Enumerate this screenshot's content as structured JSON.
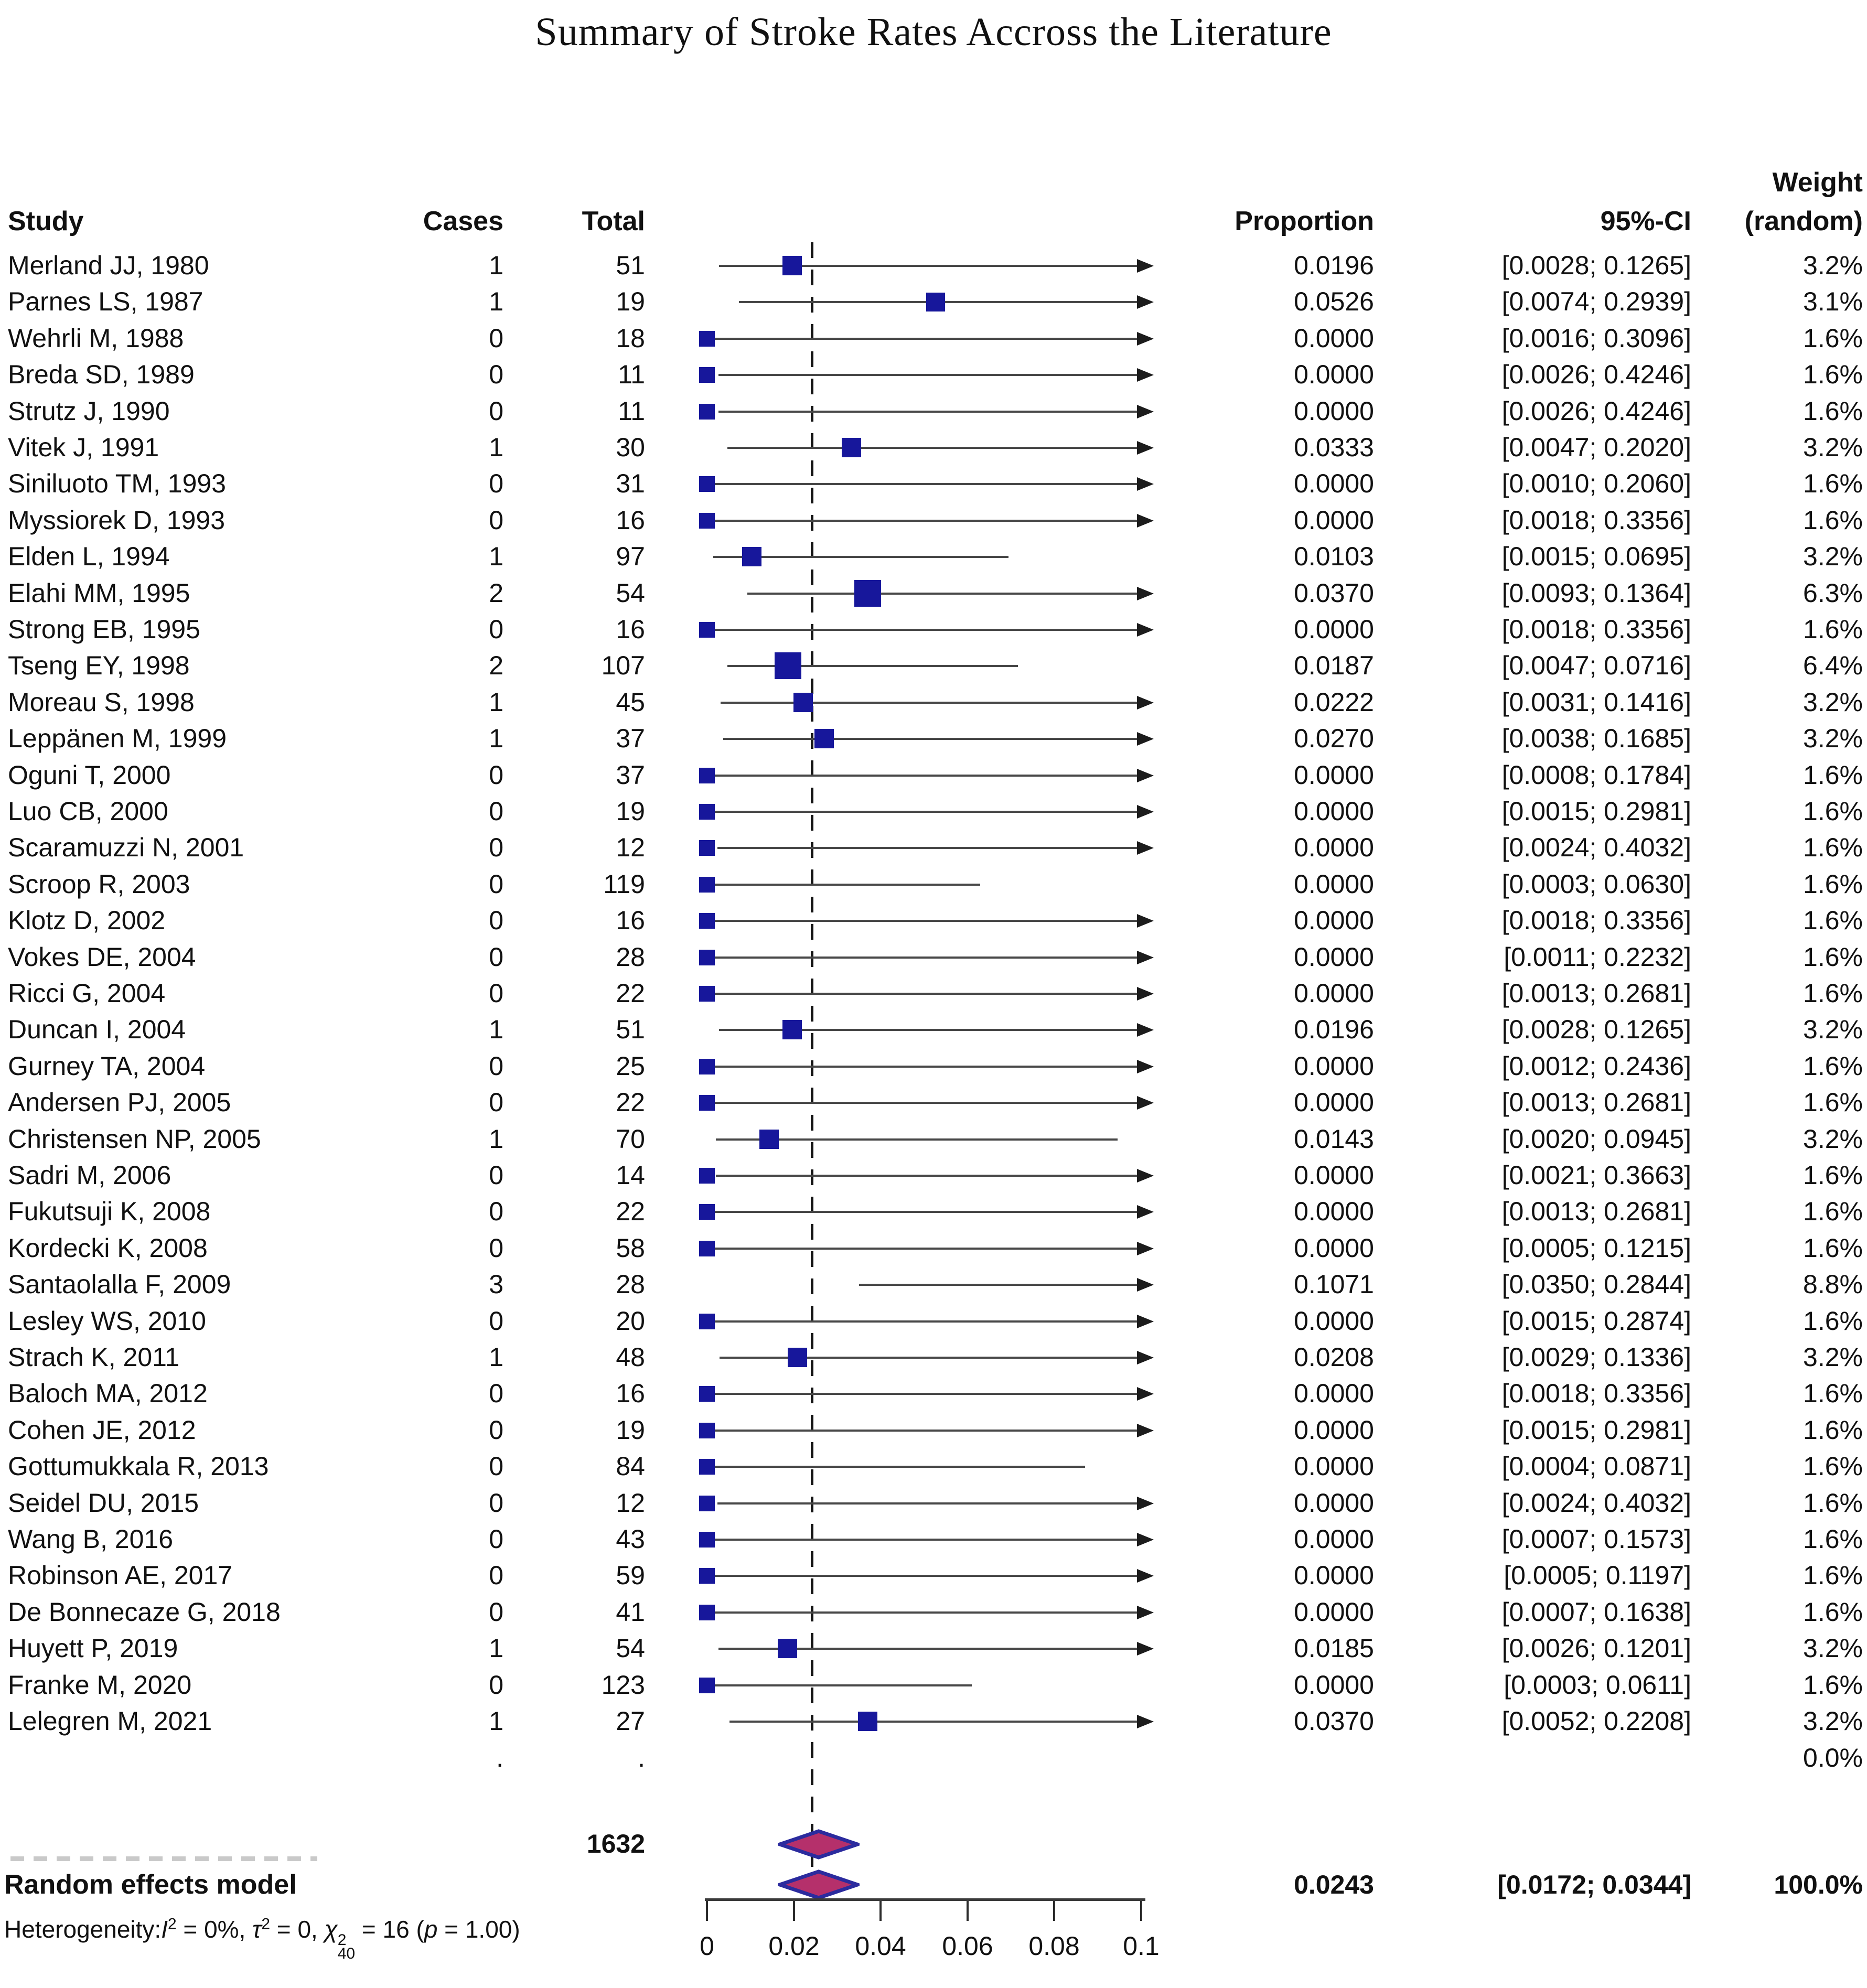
{
  "title": "Summary of Stroke Rates Accross the Literature",
  "columns": {
    "study": "Study",
    "cases": "Cases",
    "total": "Total",
    "proportion": "Proportion",
    "ci": "95%-CI",
    "weight_line1": "Weight",
    "weight_line2": "(random)"
  },
  "colors": {
    "square": "#17179b",
    "diamond_fill": "#b5306b",
    "diamond_border": "#2b2b9e",
    "ci_line": "#474747",
    "arrow": "#1c1c1c",
    "text": "#111111"
  },
  "axis": {
    "min": 0,
    "max": 0.1,
    "ticks": [
      0,
      0.02,
      0.04,
      0.06,
      0.08,
      0.1
    ],
    "tick_labels": [
      "0",
      "0.02",
      "0.04",
      "0.06",
      "0.08",
      "0.1"
    ]
  },
  "dots_row": {
    "cases": ".",
    "total": ".",
    "weight": "0.0%"
  },
  "summary": {
    "total": "1632",
    "label": "Random effects model",
    "proportion_text": "0.0243",
    "ci_text": "[0.0172; 0.0344]",
    "weight_text": "100.0%",
    "estimate": 0.0243,
    "ci_low": 0.0172,
    "ci_high": 0.0344
  },
  "heterogeneity_parts": [
    {
      "t": "Heterogeneity:"
    },
    {
      "t": "I",
      "i": true
    },
    {
      "sup": "2"
    },
    {
      "t": " = 0%, "
    },
    {
      "t": "τ",
      "i": true
    },
    {
      "sup": "2"
    },
    {
      "t": " = 0, "
    },
    {
      "t": "χ",
      "i": true
    },
    {
      "stack": [
        "2",
        "40"
      ]
    },
    {
      "t": " = 16 ("
    },
    {
      "t": "p",
      "i": true
    },
    {
      "t": " = 1.00)"
    }
  ],
  "chart_data": {
    "type": "scatter",
    "chart_style": "forest-plot (meta-analysis of proportions)",
    "title": "Summary of Stroke Rates Accross the Literature",
    "xlabel": "Proportion",
    "xlim": [
      0,
      0.1
    ],
    "reference_line": 0.0243,
    "legend": "none",
    "studies": [
      {
        "study": "Merland JJ, 1980",
        "cases": "1",
        "total": "51",
        "proportion": 0.0196,
        "ci_low": 0.0028,
        "ci_high": 0.1265,
        "proportion_text": "0.0196",
        "ci_text": "[0.0028; 0.1265]",
        "weight_text": "3.2%",
        "weight": 3.2
      },
      {
        "study": "Parnes LS, 1987",
        "cases": "1",
        "total": "19",
        "proportion": 0.0526,
        "ci_low": 0.0074,
        "ci_high": 0.2939,
        "proportion_text": "0.0526",
        "ci_text": "[0.0074; 0.2939]",
        "weight_text": "3.1%",
        "weight": 3.1
      },
      {
        "study": "Wehrli M, 1988",
        "cases": "0",
        "total": "18",
        "proportion": 0.0,
        "ci_low": 0.0016,
        "ci_high": 0.3096,
        "proportion_text": "0.0000",
        "ci_text": "[0.0016; 0.3096]",
        "weight_text": "1.6%",
        "weight": 1.6
      },
      {
        "study": "Breda SD, 1989",
        "cases": "0",
        "total": "11",
        "proportion": 0.0,
        "ci_low": 0.0026,
        "ci_high": 0.4246,
        "proportion_text": "0.0000",
        "ci_text": "[0.0026; 0.4246]",
        "weight_text": "1.6%",
        "weight": 1.6
      },
      {
        "study": "Strutz J, 1990",
        "cases": "0",
        "total": "11",
        "proportion": 0.0,
        "ci_low": 0.0026,
        "ci_high": 0.4246,
        "proportion_text": "0.0000",
        "ci_text": "[0.0026; 0.4246]",
        "weight_text": "1.6%",
        "weight": 1.6
      },
      {
        "study": "Vitek J, 1991",
        "cases": "1",
        "total": "30",
        "proportion": 0.0333,
        "ci_low": 0.0047,
        "ci_high": 0.202,
        "proportion_text": "0.0333",
        "ci_text": "[0.0047; 0.2020]",
        "weight_text": "3.2%",
        "weight": 3.2
      },
      {
        "study": "Siniluoto TM, 1993",
        "cases": "0",
        "total": "31",
        "proportion": 0.0,
        "ci_low": 0.001,
        "ci_high": 0.206,
        "proportion_text": "0.0000",
        "ci_text": "[0.0010; 0.2060]",
        "weight_text": "1.6%",
        "weight": 1.6
      },
      {
        "study": "Myssiorek D, 1993",
        "cases": "0",
        "total": "16",
        "proportion": 0.0,
        "ci_low": 0.0018,
        "ci_high": 0.3356,
        "proportion_text": "0.0000",
        "ci_text": "[0.0018; 0.3356]",
        "weight_text": "1.6%",
        "weight": 1.6
      },
      {
        "study": "Elden L, 1994",
        "cases": "1",
        "total": "97",
        "proportion": 0.0103,
        "ci_low": 0.0015,
        "ci_high": 0.0695,
        "proportion_text": "0.0103",
        "ci_text": "[0.0015; 0.0695]",
        "weight_text": "3.2%",
        "weight": 3.2
      },
      {
        "study": "Elahi MM, 1995",
        "cases": "2",
        "total": "54",
        "proportion": 0.037,
        "ci_low": 0.0093,
        "ci_high": 0.1364,
        "proportion_text": "0.0370",
        "ci_text": "[0.0093; 0.1364]",
        "weight_text": "6.3%",
        "weight": 6.3
      },
      {
        "study": "Strong EB, 1995",
        "cases": "0",
        "total": "16",
        "proportion": 0.0,
        "ci_low": 0.0018,
        "ci_high": 0.3356,
        "proportion_text": "0.0000",
        "ci_text": "[0.0018; 0.3356]",
        "weight_text": "1.6%",
        "weight": 1.6
      },
      {
        "study": "Tseng EY, 1998",
        "cases": "2",
        "total": "107",
        "proportion": 0.0187,
        "ci_low": 0.0047,
        "ci_high": 0.0716,
        "proportion_text": "0.0187",
        "ci_text": "[0.0047; 0.0716]",
        "weight_text": "6.4%",
        "weight": 6.4
      },
      {
        "study": "Moreau S, 1998",
        "cases": "1",
        "total": "45",
        "proportion": 0.0222,
        "ci_low": 0.0031,
        "ci_high": 0.1416,
        "proportion_text": "0.0222",
        "ci_text": "[0.0031; 0.1416]",
        "weight_text": "3.2%",
        "weight": 3.2
      },
      {
        "study": "Leppänen M, 1999",
        "cases": "1",
        "total": "37",
        "proportion": 0.027,
        "ci_low": 0.0038,
        "ci_high": 0.1685,
        "proportion_text": "0.0270",
        "ci_text": "[0.0038; 0.1685]",
        "weight_text": "3.2%",
        "weight": 3.2
      },
      {
        "study": "Oguni T, 2000",
        "cases": "0",
        "total": "37",
        "proportion": 0.0,
        "ci_low": 0.0008,
        "ci_high": 0.1784,
        "proportion_text": "0.0000",
        "ci_text": "[0.0008; 0.1784]",
        "weight_text": "1.6%",
        "weight": 1.6
      },
      {
        "study": "Luo CB, 2000",
        "cases": "0",
        "total": "19",
        "proportion": 0.0,
        "ci_low": 0.0015,
        "ci_high": 0.2981,
        "proportion_text": "0.0000",
        "ci_text": "[0.0015; 0.2981]",
        "weight_text": "1.6%",
        "weight": 1.6
      },
      {
        "study": "Scaramuzzi N, 2001",
        "cases": "0",
        "total": "12",
        "proportion": 0.0,
        "ci_low": 0.0024,
        "ci_high": 0.4032,
        "proportion_text": "0.0000",
        "ci_text": "[0.0024; 0.4032]",
        "weight_text": "1.6%",
        "weight": 1.6
      },
      {
        "study": "Scroop R, 2003",
        "cases": "0",
        "total": "119",
        "proportion": 0.0,
        "ci_low": 0.0003,
        "ci_high": 0.063,
        "proportion_text": "0.0000",
        "ci_text": "[0.0003; 0.0630]",
        "weight_text": "1.6%",
        "weight": 1.6
      },
      {
        "study": "Klotz D, 2002",
        "cases": "0",
        "total": "16",
        "proportion": 0.0,
        "ci_low": 0.0018,
        "ci_high": 0.3356,
        "proportion_text": "0.0000",
        "ci_text": "[0.0018; 0.3356]",
        "weight_text": "1.6%",
        "weight": 1.6
      },
      {
        "study": "Vokes DE, 2004",
        "cases": "0",
        "total": "28",
        "proportion": 0.0,
        "ci_low": 0.0011,
        "ci_high": 0.2232,
        "proportion_text": "0.0000",
        "ci_text": "[0.0011; 0.2232]",
        "weight_text": "1.6%",
        "weight": 1.6
      },
      {
        "study": "Ricci G, 2004",
        "cases": "0",
        "total": "22",
        "proportion": 0.0,
        "ci_low": 0.0013,
        "ci_high": 0.2681,
        "proportion_text": "0.0000",
        "ci_text": "[0.0013; 0.2681]",
        "weight_text": "1.6%",
        "weight": 1.6
      },
      {
        "study": "Duncan I, 2004",
        "cases": "1",
        "total": "51",
        "proportion": 0.0196,
        "ci_low": 0.0028,
        "ci_high": 0.1265,
        "proportion_text": "0.0196",
        "ci_text": "[0.0028; 0.1265]",
        "weight_text": "3.2%",
        "weight": 3.2
      },
      {
        "study": "Gurney TA, 2004",
        "cases": "0",
        "total": "25",
        "proportion": 0.0,
        "ci_low": 0.0012,
        "ci_high": 0.2436,
        "proportion_text": "0.0000",
        "ci_text": "[0.0012; 0.2436]",
        "weight_text": "1.6%",
        "weight": 1.6
      },
      {
        "study": "Andersen PJ, 2005",
        "cases": "0",
        "total": "22",
        "proportion": 0.0,
        "ci_low": 0.0013,
        "ci_high": 0.2681,
        "proportion_text": "0.0000",
        "ci_text": "[0.0013; 0.2681]",
        "weight_text": "1.6%",
        "weight": 1.6
      },
      {
        "study": "Christensen NP, 2005",
        "cases": "1",
        "total": "70",
        "proportion": 0.0143,
        "ci_low": 0.002,
        "ci_high": 0.0945,
        "proportion_text": "0.0143",
        "ci_text": "[0.0020; 0.0945]",
        "weight_text": "3.2%",
        "weight": 3.2
      },
      {
        "study": "Sadri M, 2006",
        "cases": "0",
        "total": "14",
        "proportion": 0.0,
        "ci_low": 0.0021,
        "ci_high": 0.3663,
        "proportion_text": "0.0000",
        "ci_text": "[0.0021; 0.3663]",
        "weight_text": "1.6%",
        "weight": 1.6
      },
      {
        "study": "Fukutsuji K, 2008",
        "cases": "0",
        "total": "22",
        "proportion": 0.0,
        "ci_low": 0.0013,
        "ci_high": 0.2681,
        "proportion_text": "0.0000",
        "ci_text": "[0.0013; 0.2681]",
        "weight_text": "1.6%",
        "weight": 1.6
      },
      {
        "study": "Kordecki K, 2008",
        "cases": "0",
        "total": "58",
        "proportion": 0.0,
        "ci_low": 0.0005,
        "ci_high": 0.1215,
        "proportion_text": "0.0000",
        "ci_text": "[0.0005; 0.1215]",
        "weight_text": "1.6%",
        "weight": 1.6
      },
      {
        "study": "Santaolalla F, 2009",
        "cases": "3",
        "total": "28",
        "proportion": 0.1071,
        "ci_low": 0.035,
        "ci_high": 0.2844,
        "proportion_text": "0.1071",
        "ci_text": "[0.0350; 0.2844]",
        "weight_text": "8.8%",
        "weight": 8.8
      },
      {
        "study": "Lesley WS, 2010",
        "cases": "0",
        "total": "20",
        "proportion": 0.0,
        "ci_low": 0.0015,
        "ci_high": 0.2874,
        "proportion_text": "0.0000",
        "ci_text": "[0.0015; 0.2874]",
        "weight_text": "1.6%",
        "weight": 1.6
      },
      {
        "study": "Strach K, 2011",
        "cases": "1",
        "total": "48",
        "proportion": 0.0208,
        "ci_low": 0.0029,
        "ci_high": 0.1336,
        "proportion_text": "0.0208",
        "ci_text": "[0.0029; 0.1336]",
        "weight_text": "3.2%",
        "weight": 3.2
      },
      {
        "study": "Baloch MA, 2012",
        "cases": "0",
        "total": "16",
        "proportion": 0.0,
        "ci_low": 0.0018,
        "ci_high": 0.3356,
        "proportion_text": "0.0000",
        "ci_text": "[0.0018; 0.3356]",
        "weight_text": "1.6%",
        "weight": 1.6
      },
      {
        "study": "Cohen JE, 2012",
        "cases": "0",
        "total": "19",
        "proportion": 0.0,
        "ci_low": 0.0015,
        "ci_high": 0.2981,
        "proportion_text": "0.0000",
        "ci_text": "[0.0015; 0.2981]",
        "weight_text": "1.6%",
        "weight": 1.6
      },
      {
        "study": "Gottumukkala R, 2013",
        "cases": "0",
        "total": "84",
        "proportion": 0.0,
        "ci_low": 0.0004,
        "ci_high": 0.0871,
        "proportion_text": "0.0000",
        "ci_text": "[0.0004; 0.0871]",
        "weight_text": "1.6%",
        "weight": 1.6
      },
      {
        "study": "Seidel DU, 2015",
        "cases": "0",
        "total": "12",
        "proportion": 0.0,
        "ci_low": 0.0024,
        "ci_high": 0.4032,
        "proportion_text": "0.0000",
        "ci_text": "[0.0024; 0.4032]",
        "weight_text": "1.6%",
        "weight": 1.6
      },
      {
        "study": "Wang B, 2016",
        "cases": "0",
        "total": "43",
        "proportion": 0.0,
        "ci_low": 0.0007,
        "ci_high": 0.1573,
        "proportion_text": "0.0000",
        "ci_text": "[0.0007; 0.1573]",
        "weight_text": "1.6%",
        "weight": 1.6
      },
      {
        "study": "Robinson AE, 2017",
        "cases": "0",
        "total": "59",
        "proportion": 0.0,
        "ci_low": 0.0005,
        "ci_high": 0.1197,
        "proportion_text": "0.0000",
        "ci_text": "[0.0005; 0.1197]",
        "weight_text": "1.6%",
        "weight": 1.6
      },
      {
        "study": "De Bonnecaze G, 2018",
        "cases": "0",
        "total": "41",
        "proportion": 0.0,
        "ci_low": 0.0007,
        "ci_high": 0.1638,
        "proportion_text": "0.0000",
        "ci_text": "[0.0007; 0.1638]",
        "weight_text": "1.6%",
        "weight": 1.6
      },
      {
        "study": "Huyett P, 2019",
        "cases": "1",
        "total": "54",
        "proportion": 0.0185,
        "ci_low": 0.0026,
        "ci_high": 0.1201,
        "proportion_text": "0.0185",
        "ci_text": "[0.0026; 0.1201]",
        "weight_text": "3.2%",
        "weight": 3.2
      },
      {
        "study": "Franke M, 2020",
        "cases": "0",
        "total": "123",
        "proportion": 0.0,
        "ci_low": 0.0003,
        "ci_high": 0.0611,
        "proportion_text": "0.0000",
        "ci_text": "[0.0003; 0.0611]",
        "weight_text": "1.6%",
        "weight": 1.6
      },
      {
        "study": "Lelegren M, 2021",
        "cases": "1",
        "total": "27",
        "proportion": 0.037,
        "ci_low": 0.0052,
        "ci_high": 0.2208,
        "proportion_text": "0.0370",
        "ci_text": "[0.0052; 0.2208]",
        "weight_text": "3.2%",
        "weight": 3.2
      }
    ],
    "pooled": {
      "model": "Random effects model",
      "total": 1632,
      "proportion": 0.0243,
      "ci_low": 0.0172,
      "ci_high": 0.0344,
      "weight": "100.0%",
      "heterogeneity": "Heterogeneity: I2 = 0%, tau2 = 0, chi2(40) = 16 (p = 1.00)"
    }
  }
}
